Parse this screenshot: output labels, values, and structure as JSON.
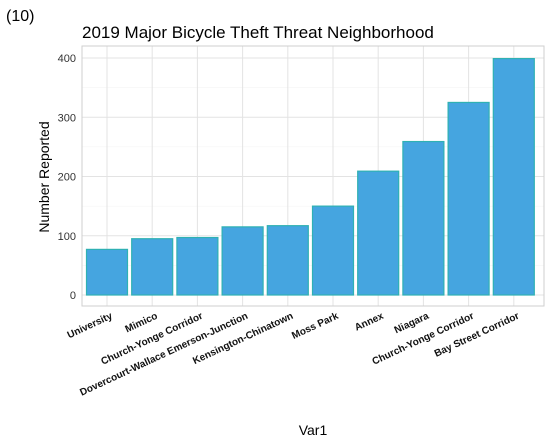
{
  "panel_tag": "(10)",
  "colors": {
    "bar_fill": "#45a5e0",
    "bar_stroke": "#2fb1b3"
  },
  "chart_data": {
    "type": "bar",
    "title": "2019 Major Bicycle Theft Threat Neighborhood",
    "xlabel": "Var1",
    "ylabel": "Number Reported",
    "categories": [
      "University",
      "Mimico",
      "Church-Yonge Corridor",
      "Dovercourt-Wallace Emerson-Junction",
      "Kensington-Chinatown",
      "Moss Park",
      "Annex",
      "Niagara",
      "Church-Yonge Corridor",
      "Bay Street Corridor"
    ],
    "values": [
      77,
      95,
      97,
      115,
      117,
      150,
      209,
      259,
      325,
      399
    ],
    "ylim": [
      0,
      400
    ],
    "yticks": [
      0,
      100,
      200,
      300,
      400
    ],
    "grid": true,
    "legend": "none"
  }
}
